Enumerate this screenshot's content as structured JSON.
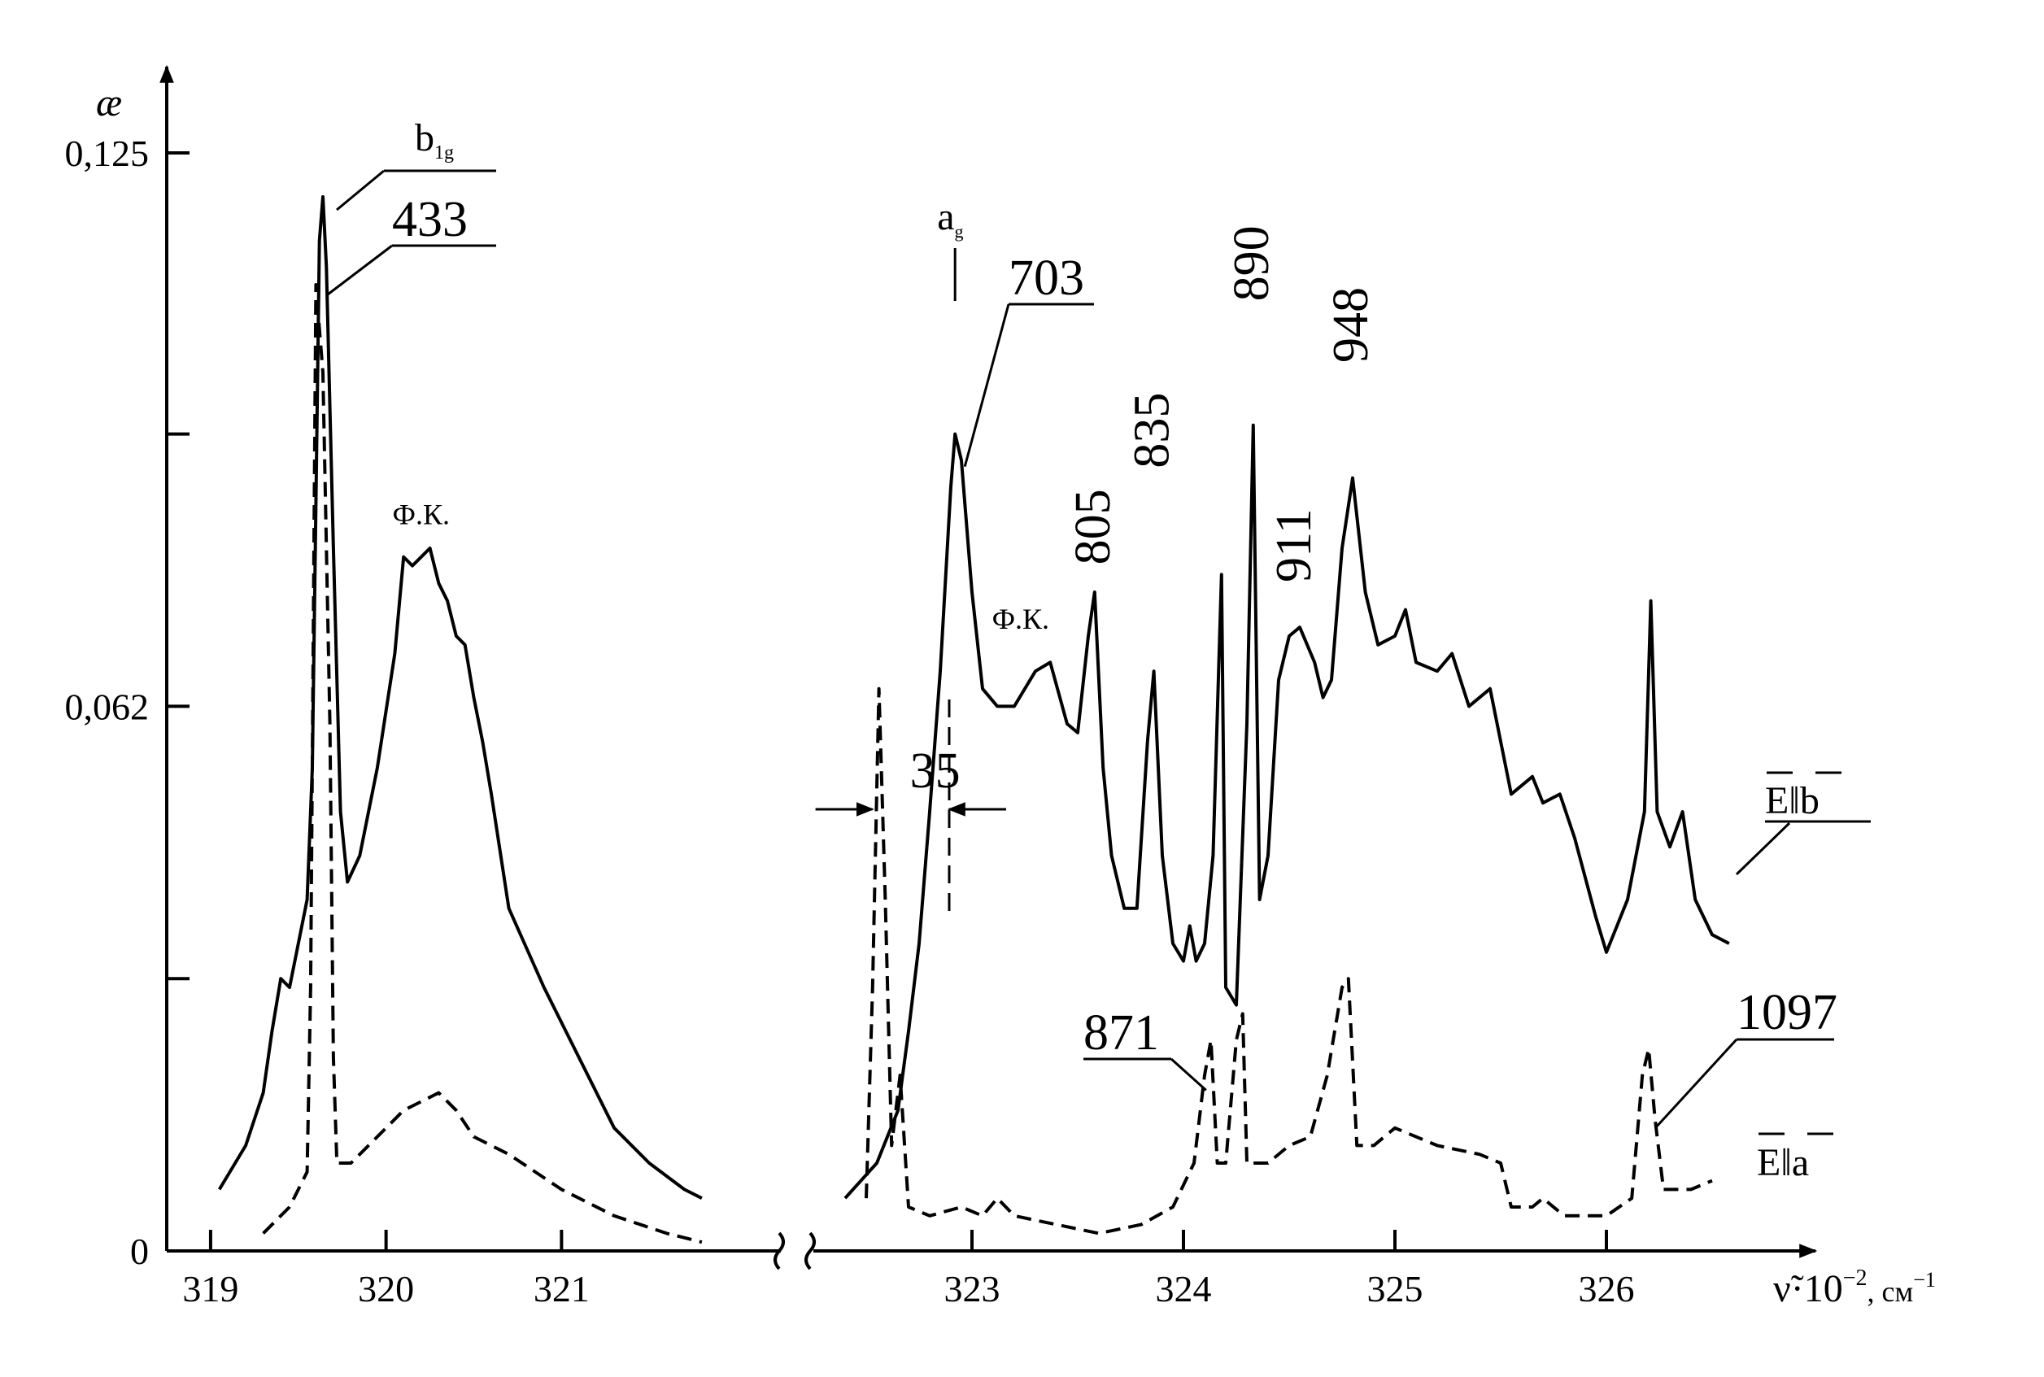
{
  "chart_data": {
    "type": "line",
    "y_axis_symbol": "æ",
    "x_axis_label_main": "ν̃·10",
    "x_axis_label_exp": "−2",
    "x_axis_label_unit": ", см",
    "x_axis_label_unit_exp": "−1",
    "ylim": [
      0,
      0.125
    ],
    "y_ticks": [
      {
        "value": 0,
        "label": "0"
      },
      {
        "value": 0.031,
        "label": ""
      },
      {
        "value": 0.062,
        "label": "0,062"
      },
      {
        "value": 0.093,
        "label": ""
      },
      {
        "value": 0.125,
        "label": "0,125"
      }
    ],
    "x_segments": [
      {
        "xlim": [
          318.75,
          322.25
        ],
        "ticks": [
          {
            "value": 319,
            "label": "319"
          },
          {
            "value": 320,
            "label": "320"
          },
          {
            "value": 321,
            "label": "321"
          }
        ]
      },
      {
        "xlim": [
          322.25,
          326.75
        ],
        "ticks": [
          {
            "value": 323,
            "label": "323"
          },
          {
            "value": 324,
            "label": "324"
          },
          {
            "value": 325,
            "label": "325"
          },
          {
            "value": 326,
            "label": "326"
          }
        ]
      }
    ],
    "series": [
      {
        "name": "E||b",
        "name_main": "E",
        "name_sep": "‖",
        "name_axis": "b",
        "style": "solid",
        "segments": [
          [
            [
              319.05,
              0.007
            ],
            [
              319.2,
              0.012
            ],
            [
              319.3,
              0.018
            ],
            [
              319.35,
              0.025
            ],
            [
              319.4,
              0.031
            ],
            [
              319.45,
              0.03
            ],
            [
              319.5,
              0.035
            ],
            [
              319.55,
              0.04
            ],
            [
              319.58,
              0.055
            ],
            [
              319.6,
              0.085
            ],
            [
              319.62,
              0.115
            ],
            [
              319.64,
              0.12
            ],
            [
              319.66,
              0.112
            ],
            [
              319.7,
              0.08
            ],
            [
              319.74,
              0.05
            ],
            [
              319.78,
              0.042
            ],
            [
              319.85,
              0.045
            ],
            [
              319.95,
              0.055
            ],
            [
              320.05,
              0.068
            ],
            [
              320.1,
              0.079
            ],
            [
              320.15,
              0.078
            ],
            [
              320.2,
              0.079
            ],
            [
              320.25,
              0.08
            ],
            [
              320.3,
              0.076
            ],
            [
              320.35,
              0.074
            ],
            [
              320.4,
              0.07
            ],
            [
              320.45,
              0.069
            ],
            [
              320.5,
              0.063
            ],
            [
              320.55,
              0.058
            ],
            [
              320.6,
              0.052
            ],
            [
              320.7,
              0.039
            ],
            [
              320.9,
              0.03
            ],
            [
              321.1,
              0.022
            ],
            [
              321.3,
              0.014
            ],
            [
              321.5,
              0.01
            ],
            [
              321.7,
              0.007
            ],
            [
              321.8,
              0.006
            ]
          ],
          [
            [
              322.4,
              0.006
            ],
            [
              322.55,
              0.01
            ],
            [
              322.65,
              0.016
            ],
            [
              322.7,
              0.025
            ],
            [
              322.75,
              0.035
            ],
            [
              322.8,
              0.05
            ],
            [
              322.85,
              0.066
            ],
            [
              322.9,
              0.087
            ],
            [
              322.92,
              0.093
            ],
            [
              322.95,
              0.09
            ],
            [
              323.0,
              0.075
            ],
            [
              323.05,
              0.064
            ],
            [
              323.12,
              0.062
            ],
            [
              323.2,
              0.062
            ],
            [
              323.3,
              0.066
            ],
            [
              323.37,
              0.067
            ],
            [
              323.45,
              0.06
            ],
            [
              323.5,
              0.059
            ],
            [
              323.55,
              0.07
            ],
            [
              323.58,
              0.075
            ],
            [
              323.62,
              0.055
            ],
            [
              323.66,
              0.045
            ],
            [
              323.72,
              0.039
            ],
            [
              323.78,
              0.039
            ],
            [
              323.83,
              0.058
            ],
            [
              323.86,
              0.066
            ],
            [
              323.9,
              0.045
            ],
            [
              323.95,
              0.035
            ],
            [
              324.0,
              0.033
            ],
            [
              324.03,
              0.037
            ],
            [
              324.06,
              0.033
            ],
            [
              324.1,
              0.035
            ],
            [
              324.14,
              0.045
            ],
            [
              324.18,
              0.077
            ],
            [
              324.2,
              0.03
            ],
            [
              324.25,
              0.028
            ],
            [
              324.3,
              0.06
            ],
            [
              324.33,
              0.094
            ],
            [
              324.36,
              0.04
            ],
            [
              324.4,
              0.045
            ],
            [
              324.45,
              0.065
            ],
            [
              324.5,
              0.07
            ],
            [
              324.55,
              0.071
            ],
            [
              324.62,
              0.067
            ],
            [
              324.66,
              0.063
            ],
            [
              324.7,
              0.065
            ],
            [
              324.75,
              0.08
            ],
            [
              324.8,
              0.088
            ],
            [
              324.86,
              0.075
            ],
            [
              324.92,
              0.069
            ],
            [
              325.0,
              0.07
            ],
            [
              325.05,
              0.073
            ],
            [
              325.1,
              0.067
            ],
            [
              325.2,
              0.066
            ],
            [
              325.27,
              0.068
            ],
            [
              325.35,
              0.062
            ],
            [
              325.45,
              0.064
            ],
            [
              325.5,
              0.058
            ],
            [
              325.55,
              0.052
            ],
            [
              325.65,
              0.054
            ],
            [
              325.7,
              0.051
            ],
            [
              325.78,
              0.052
            ],
            [
              325.85,
              0.047
            ],
            [
              325.95,
              0.038
            ],
            [
              326.0,
              0.034
            ],
            [
              326.1,
              0.04
            ],
            [
              326.18,
              0.05
            ],
            [
              326.21,
              0.074
            ],
            [
              326.24,
              0.05
            ],
            [
              326.3,
              0.046
            ],
            [
              326.36,
              0.05
            ],
            [
              326.42,
              0.04
            ],
            [
              326.5,
              0.036
            ],
            [
              326.58,
              0.035
            ]
          ]
        ]
      },
      {
        "name": "E||a",
        "name_main": "E",
        "name_sep": "‖",
        "name_axis": "a",
        "style": "dashed",
        "segments": [
          [
            [
              319.3,
              0.002
            ],
            [
              319.45,
              0.005
            ],
            [
              319.55,
              0.009
            ],
            [
              319.57,
              0.03
            ],
            [
              319.6,
              0.11
            ],
            [
              319.64,
              0.1
            ],
            [
              319.68,
              0.06
            ],
            [
              319.7,
              0.022
            ],
            [
              319.72,
              0.01
            ],
            [
              319.8,
              0.01
            ],
            [
              319.95,
              0.013
            ],
            [
              320.1,
              0.016
            ],
            [
              320.3,
              0.018
            ],
            [
              320.4,
              0.016
            ],
            [
              320.5,
              0.013
            ],
            [
              320.7,
              0.011
            ],
            [
              321.0,
              0.007
            ],
            [
              321.3,
              0.004
            ],
            [
              321.6,
              0.002
            ],
            [
              321.8,
              0.001
            ]
          ],
          [
            [
              322.5,
              0.006
            ],
            [
              322.53,
              0.03
            ],
            [
              322.56,
              0.064
            ],
            [
              322.59,
              0.04
            ],
            [
              322.62,
              0.012
            ],
            [
              322.66,
              0.02
            ],
            [
              322.7,
              0.005
            ],
            [
              322.8,
              0.004
            ],
            [
              322.95,
              0.005
            ],
            [
              323.05,
              0.004
            ],
            [
              323.12,
              0.006
            ],
            [
              323.2,
              0.004
            ],
            [
              323.4,
              0.003
            ],
            [
              323.6,
              0.002
            ],
            [
              323.8,
              0.003
            ],
            [
              323.95,
              0.005
            ],
            [
              324.05,
              0.01
            ],
            [
              324.1,
              0.02
            ],
            [
              324.13,
              0.024
            ],
            [
              324.16,
              0.01
            ],
            [
              324.2,
              0.01
            ],
            [
              324.25,
              0.024
            ],
            [
              324.28,
              0.027
            ],
            [
              324.3,
              0.01
            ],
            [
              324.4,
              0.01
            ],
            [
              324.5,
              0.012
            ],
            [
              324.6,
              0.013
            ],
            [
              324.68,
              0.02
            ],
            [
              324.75,
              0.03
            ],
            [
              324.78,
              0.031
            ],
            [
              324.82,
              0.012
            ],
            [
              324.9,
              0.012
            ],
            [
              325.0,
              0.014
            ],
            [
              325.2,
              0.012
            ],
            [
              325.4,
              0.011
            ],
            [
              325.5,
              0.01
            ],
            [
              325.55,
              0.005
            ],
            [
              325.65,
              0.005
            ],
            [
              325.7,
              0.006
            ],
            [
              325.8,
              0.004
            ],
            [
              326.0,
              0.004
            ],
            [
              326.12,
              0.006
            ],
            [
              326.17,
              0.02
            ],
            [
              326.2,
              0.023
            ],
            [
              326.23,
              0.015
            ],
            [
              326.27,
              0.007
            ],
            [
              326.4,
              0.007
            ],
            [
              326.5,
              0.008
            ]
          ]
        ]
      }
    ],
    "annotations": [
      {
        "text": "433",
        "x": 319.64,
        "y": 0.12,
        "kind": "peak"
      },
      {
        "text": "b",
        "sub": "1g",
        "x": 319.6,
        "y": 0.125,
        "kind": "symmetry"
      },
      {
        "text": "Ф.К.",
        "x": 320.2,
        "y": 0.082,
        "kind": "small"
      },
      {
        "text": "a",
        "sub": "g",
        "x": 322.92,
        "y": 0.1,
        "kind": "symmetry"
      },
      {
        "text": "703",
        "x": 322.92,
        "y": 0.093,
        "kind": "peak"
      },
      {
        "text": "Ф.К.",
        "x": 323.23,
        "y": 0.069,
        "kind": "small"
      },
      {
        "text": "805",
        "x": 323.58,
        "y": 0.077,
        "kind": "vertical"
      },
      {
        "text": "835",
        "x": 323.86,
        "y": 0.088,
        "kind": "vertical"
      },
      {
        "text": "890",
        "x": 324.33,
        "y": 0.107,
        "kind": "vertical"
      },
      {
        "text": "911",
        "x": 324.53,
        "y": 0.075,
        "kind": "vertical"
      },
      {
        "text": "948",
        "x": 324.8,
        "y": 0.1,
        "kind": "vertical"
      },
      {
        "text": "35",
        "x": 322.8,
        "y": 0.052,
        "kind": "gap"
      },
      {
        "text": "871",
        "x": 324.13,
        "y": 0.022,
        "kind": "peak"
      },
      {
        "text": "1097",
        "x": 326.2,
        "y": 0.02,
        "kind": "peak"
      }
    ]
  }
}
